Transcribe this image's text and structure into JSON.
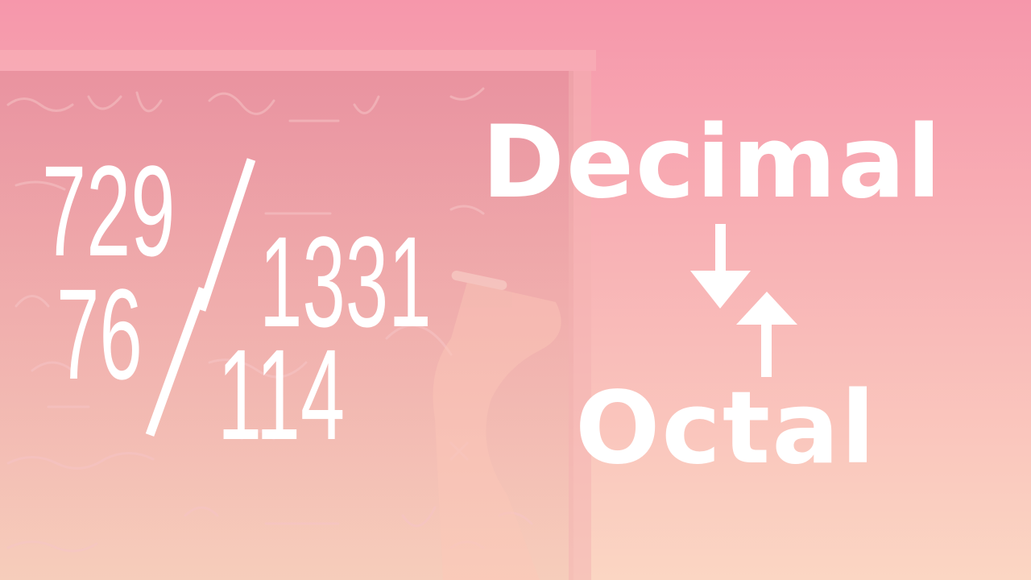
{
  "colors": {
    "gradient_top": "#f697ab",
    "gradient_bottom": "#fbd6c3",
    "text": "#ffffff",
    "chalkboard": "#cc7f8a"
  },
  "fractions": {
    "first": {
      "numerator": "729",
      "denominator": "1331"
    },
    "second": {
      "numerator": "76",
      "denominator": "114"
    }
  },
  "conversion": {
    "from": "Decimal",
    "to": "Octal",
    "icons": [
      "arrow-down-icon",
      "arrow-up-icon"
    ]
  }
}
